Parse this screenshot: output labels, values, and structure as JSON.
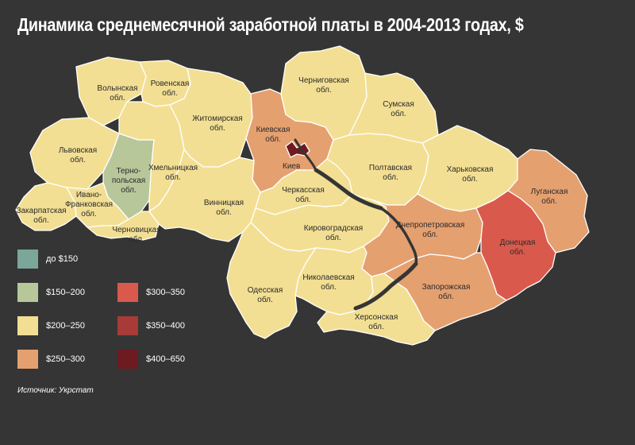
{
  "title": "Динамика среднемесячной заработной платы в 2004-2013 годах, $",
  "source": "Источник: Укрстат",
  "colors": {
    "background": "#353535",
    "border": "#ffffff",
    "range_150": "#7aa79a",
    "range_150_200": "#b7c79a",
    "range_200_250": "#f3df93",
    "range_250_300": "#e5a070",
    "range_300_350": "#d95a4c",
    "range_350_400": "#a83a38",
    "range_400_650": "#6d1a20"
  },
  "legend": [
    {
      "label": "до $150",
      "range": "range_150",
      "color": "#7aa79a"
    },
    {
      "label": "$150–200",
      "range": "range_150_200",
      "color": "#b7c79a"
    },
    {
      "label": "$200–250",
      "range": "range_200_250",
      "color": "#f3df93"
    },
    {
      "label": "$250–300",
      "range": "range_250_300",
      "color": "#e5a070"
    },
    {
      "label": "$300–350",
      "range": "range_300_350",
      "color": "#d95a4c"
    },
    {
      "label": "$350–400",
      "range": "range_350_400",
      "color": "#a83a38"
    },
    {
      "label": "$400–650",
      "range": "range_400_650",
      "color": "#6d1a20"
    }
  ],
  "regions": [
    {
      "id": "volyn",
      "lines": [
        "Волынская",
        "обл."
      ],
      "range": "range_200_250"
    },
    {
      "id": "rivne",
      "lines": [
        "Ровенская",
        "обл."
      ],
      "range": "range_200_250"
    },
    {
      "id": "lviv",
      "lines": [
        "Львовская",
        "обл."
      ],
      "range": "range_200_250"
    },
    {
      "id": "ternopil",
      "lines": [
        "Терно-",
        "польская",
        "обл."
      ],
      "range": "range_150_200"
    },
    {
      "id": "khmelnytskyi",
      "lines": [
        "Хмельницкая",
        "обл."
      ],
      "range": "range_200_250"
    },
    {
      "id": "zhytomyr",
      "lines": [
        "Житомирская",
        "обл."
      ],
      "range": "range_200_250"
    },
    {
      "id": "kyiv_oblast",
      "lines": [
        "Киевская",
        "обл."
      ],
      "range": "range_250_300"
    },
    {
      "id": "kyiv_city",
      "lines": [
        "Киев"
      ],
      "range": "range_400_650"
    },
    {
      "id": "chernihiv",
      "lines": [
        "Черниговская",
        "обл."
      ],
      "range": "range_200_250"
    },
    {
      "id": "sumy",
      "lines": [
        "Сумская",
        "обл."
      ],
      "range": "range_200_250"
    },
    {
      "id": "zakarpattia",
      "lines": [
        "Закарпатская",
        "обл."
      ],
      "range": "range_200_250"
    },
    {
      "id": "ivano_frankivsk",
      "lines": [
        "Ивано-",
        "Франковская",
        "обл."
      ],
      "range": "range_200_250"
    },
    {
      "id": "chernivtsi",
      "lines": [
        "Черновицкая",
        "обл."
      ],
      "range": "range_200_250"
    },
    {
      "id": "vinnytsia",
      "lines": [
        "Винницкая",
        "обл."
      ],
      "range": "range_200_250"
    },
    {
      "id": "cherkasy",
      "lines": [
        "Черкасская",
        "обл."
      ],
      "range": "range_200_250"
    },
    {
      "id": "poltava",
      "lines": [
        "Полтавская",
        "обл."
      ],
      "range": "range_200_250"
    },
    {
      "id": "kharkiv",
      "lines": [
        "Харьковская",
        "обл."
      ],
      "range": "range_200_250"
    },
    {
      "id": "luhansk",
      "lines": [
        "Луганская",
        "обл."
      ],
      "range": "range_250_300"
    },
    {
      "id": "kirovohrad",
      "lines": [
        "Кировоградская",
        "обл."
      ],
      "range": "range_200_250"
    },
    {
      "id": "dnipropetrovsk",
      "lines": [
        "Днепропетровская",
        "обл."
      ],
      "range": "range_250_300"
    },
    {
      "id": "donetsk",
      "lines": [
        "Донецкая",
        "обл."
      ],
      "range": "range_300_350"
    },
    {
      "id": "odesa",
      "lines": [
        "Одесская",
        "обл."
      ],
      "range": "range_200_250"
    },
    {
      "id": "mykolaiv",
      "lines": [
        "Николаевская",
        "обл."
      ],
      "range": "range_200_250"
    },
    {
      "id": "zaporizhzhia",
      "lines": [
        "Запорожская",
        "обл."
      ],
      "range": "range_250_300"
    },
    {
      "id": "kherson",
      "lines": [
        "Херсонская",
        "обл."
      ],
      "range": "range_200_250"
    }
  ]
}
